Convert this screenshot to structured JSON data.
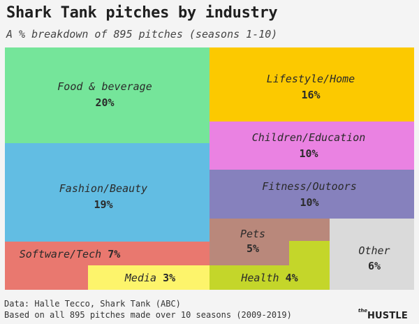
{
  "title": "Shark Tank pitches by industry",
  "subtitle": "A % breakdown of 895 pitches (seasons 1-10)",
  "chart_data": {
    "type": "treemap",
    "total_pitches": 895,
    "unit": "%",
    "categories": [
      {
        "name": "Food & beverage",
        "value": 20,
        "label": "20%",
        "color": "#75e59a"
      },
      {
        "name": "Lifestyle/Home",
        "value": 16,
        "label": "16%",
        "color": "#fcc900"
      },
      {
        "name": "Children/Education",
        "value": 10,
        "label": "10%",
        "color": "#ea82e2"
      },
      {
        "name": "Fashion/Beauty",
        "value": 19,
        "label": "19%",
        "color": "#62bde3"
      },
      {
        "name": "Fitness/Outoors",
        "value": 10,
        "label": "10%",
        "color": "#8681bd"
      },
      {
        "name": "Software/Tech",
        "value": 7,
        "label": "7%",
        "color": "#e9786f"
      },
      {
        "name": "Media",
        "value": 3,
        "label": "3%",
        "color": "#fdf46b"
      },
      {
        "name": "Pets",
        "value": 5,
        "label": "5%",
        "color": "#b9887b"
      },
      {
        "name": "Health",
        "value": 4,
        "label": "4%",
        "color": "#c4d62a"
      },
      {
        "name": "Other",
        "value": 6,
        "label": "6%",
        "color": "#dadada"
      }
    ]
  },
  "source_line1": "Data: Halle Tecco, Shark Tank (ABC)",
  "source_line2": "Based on all 895 pitches made over 10 seasons (2009-2019)",
  "logo": {
    "the": "the",
    "name": "HUSTLE"
  }
}
